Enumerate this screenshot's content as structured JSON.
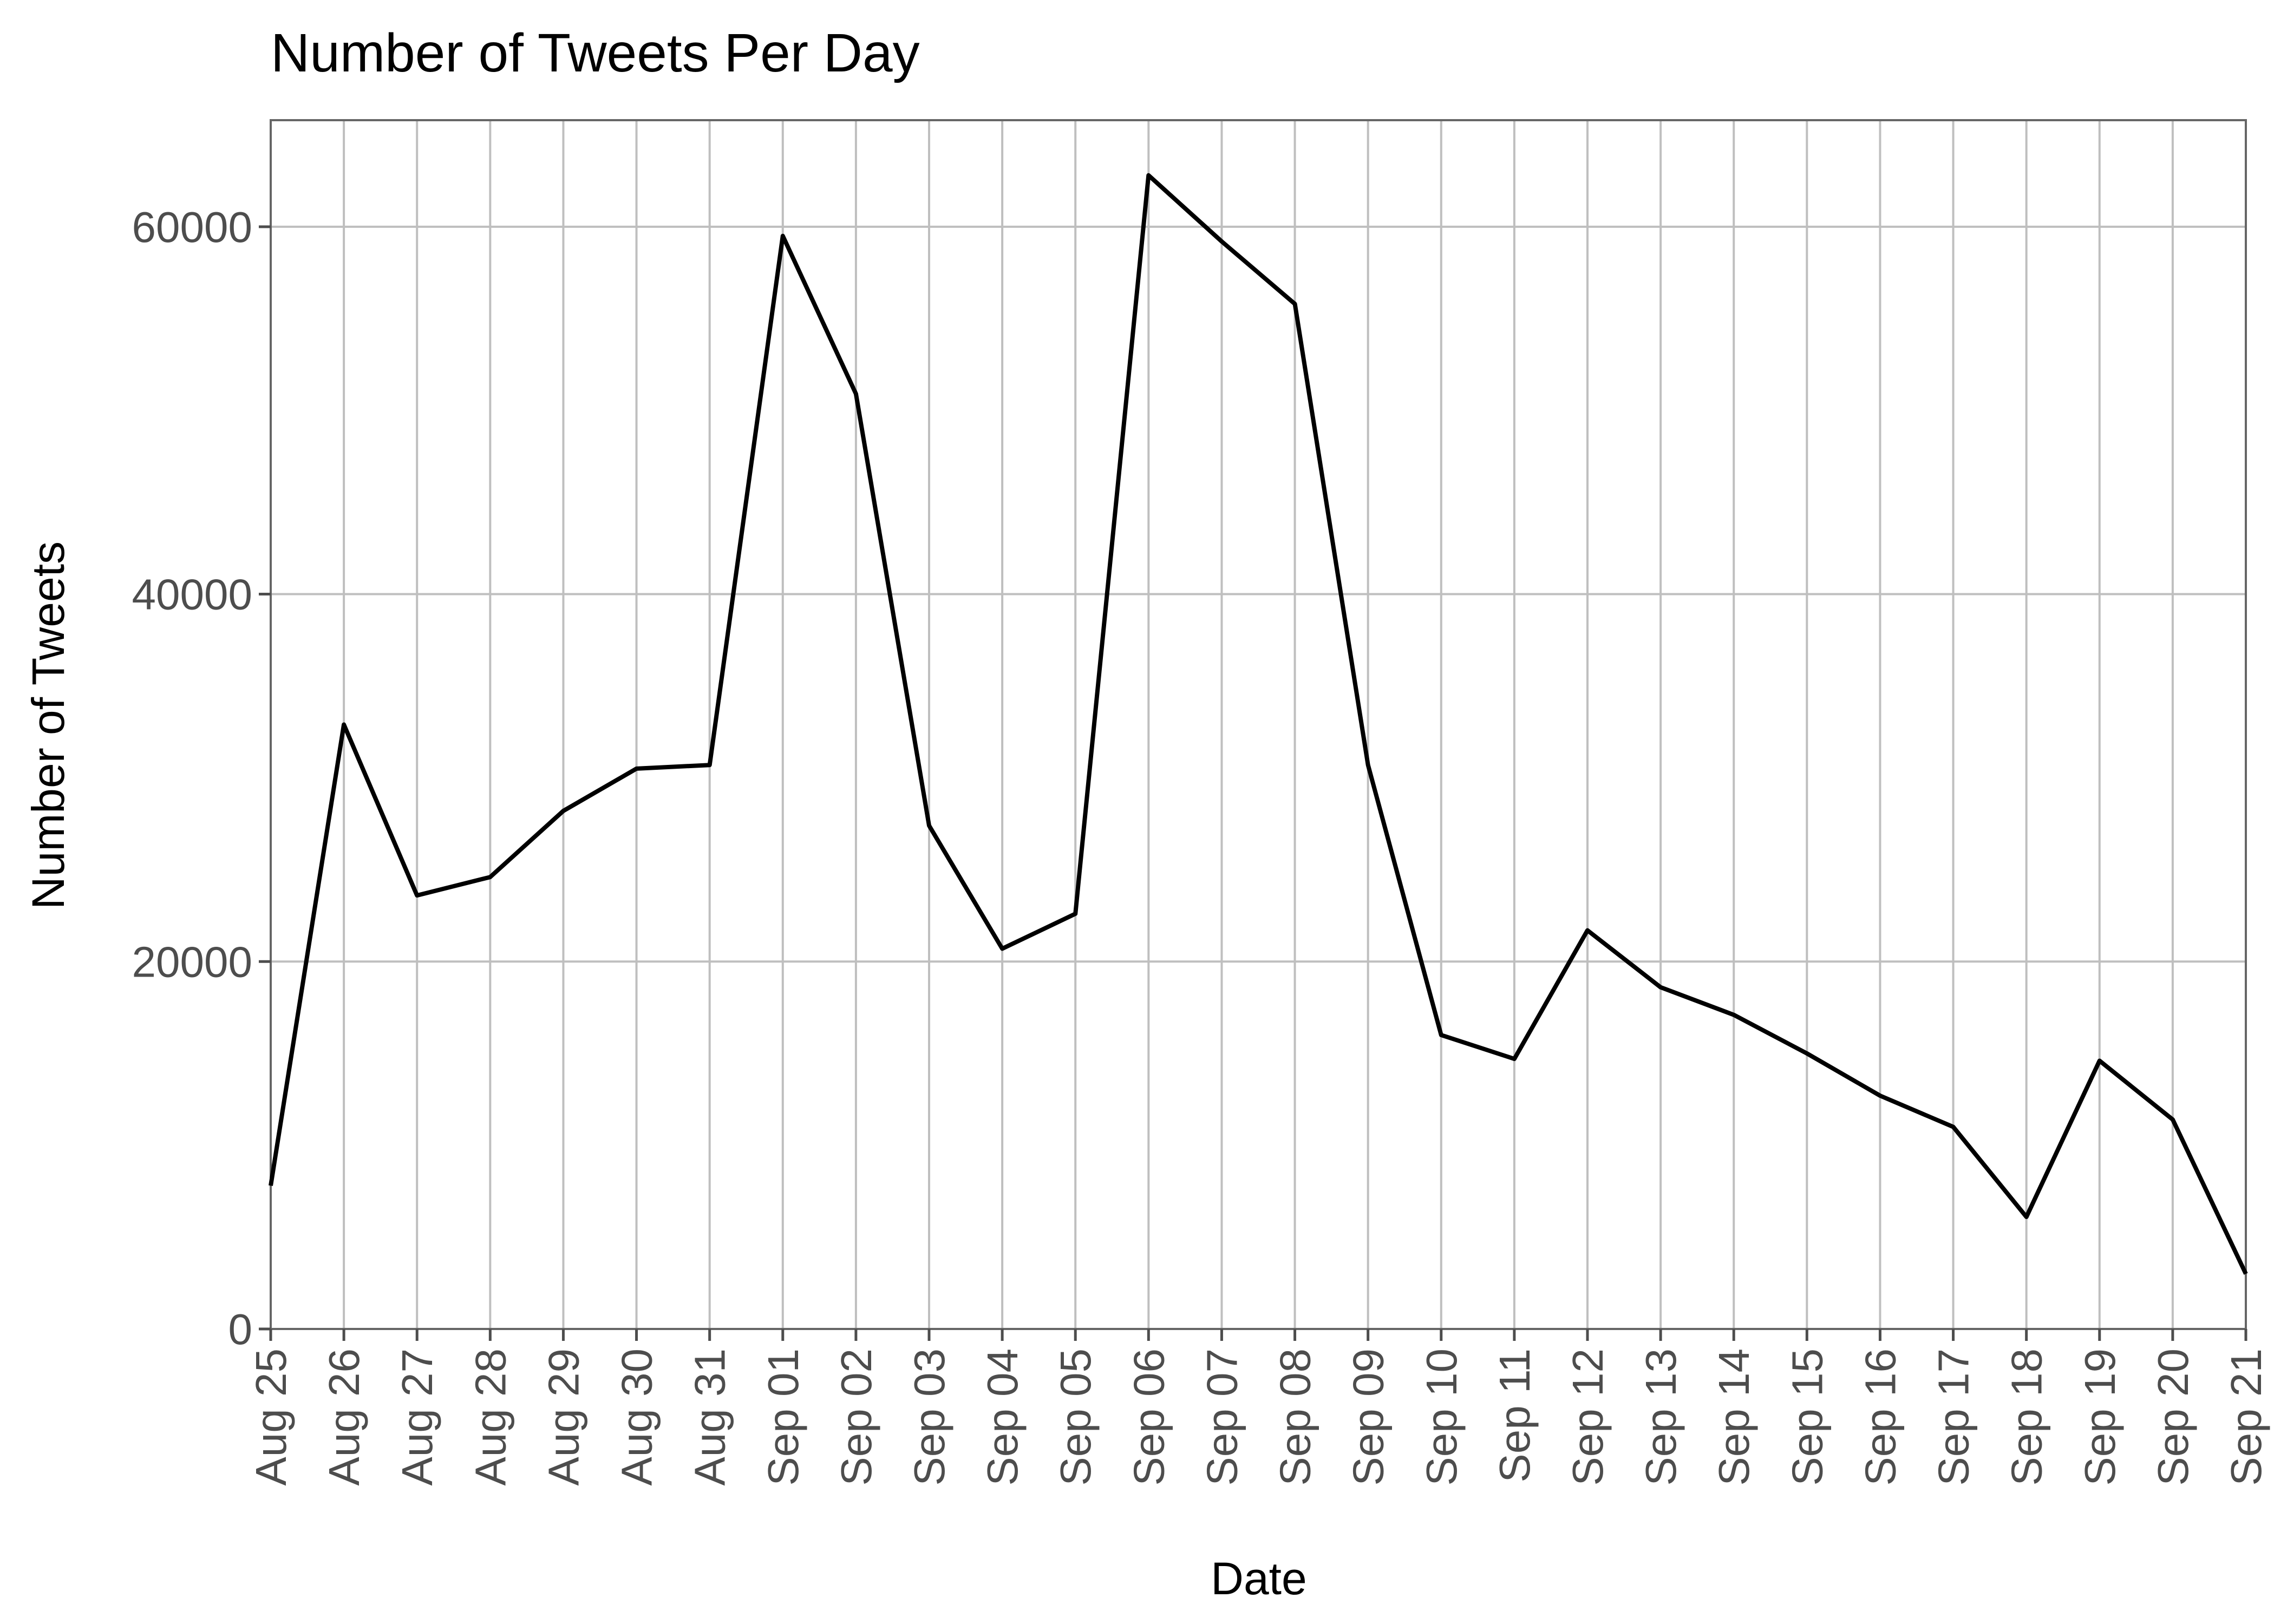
{
  "chart_data": {
    "type": "line",
    "title": "Number of Tweets Per Day",
    "xlabel": "Date",
    "ylabel": "Number of Tweets",
    "ylim": [
      0,
      65800
    ],
    "yticks": [
      0,
      20000,
      40000,
      60000
    ],
    "grid": true,
    "legend": "none",
    "line_color": "#000000",
    "categories": [
      "Aug 25",
      "Aug 26",
      "Aug 27",
      "Aug 28",
      "Aug 29",
      "Aug 30",
      "Aug 31",
      "Sep 01",
      "Sep 02",
      "Sep 03",
      "Sep 04",
      "Sep 05",
      "Sep 06",
      "Sep 07",
      "Sep 08",
      "Sep 09",
      "Sep 10",
      "Sep 11",
      "Sep 12",
      "Sep 13",
      "Sep 14",
      "Sep 15",
      "Sep 16",
      "Sep 17",
      "Sep 18",
      "Sep 19",
      "Sep 20",
      "Sep 21"
    ],
    "series": [
      {
        "values": [
          7800,
          32900,
          23600,
          24600,
          28200,
          30500,
          30700,
          59500,
          50900,
          27400,
          20700,
          22600,
          62800,
          59200,
          55800,
          30700,
          16000,
          14700,
          21700,
          18600,
          17100,
          15000,
          12700,
          11000,
          6100,
          14600,
          11400,
          3000
        ]
      }
    ]
  }
}
